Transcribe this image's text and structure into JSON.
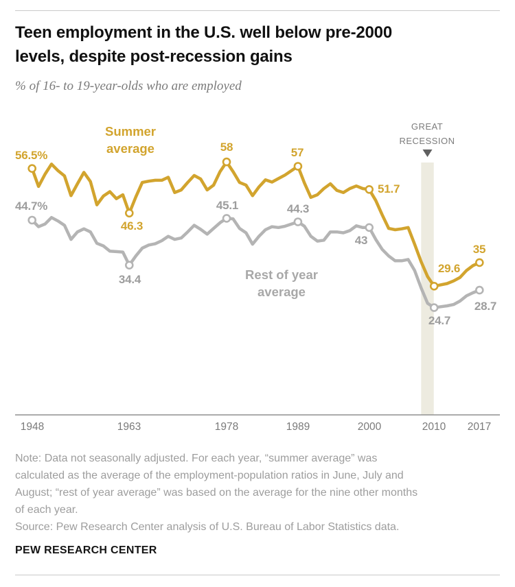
{
  "header": {
    "title": "Teen employment in the U.S. well below pre-2000\nlevels, despite post-recession gains",
    "subtitle": "% of 16- to 19-year-olds who are employed"
  },
  "chart_data": {
    "type": "line",
    "x_start": 1948,
    "x_end": 2017,
    "x_ticks": [
      1948,
      1963,
      1978,
      1989,
      2000,
      2010,
      2017
    ],
    "ylim": [
      0,
      60
    ],
    "grid": false,
    "legend_position": "inline-labels",
    "annotation": {
      "label": "GREAT RECESSION",
      "band_start": 2008,
      "band_end": 2010,
      "band_color": "#edebe0"
    },
    "marked_years": [
      1948,
      1963,
      1978,
      1989,
      2000,
      2010,
      2017
    ],
    "series": [
      {
        "name": "Summer average",
        "color": "#d2a42e",
        "values": [
          56.5,
          52.4,
          55.2,
          57.5,
          56.0,
          54.8,
          50.3,
          53.0,
          55.6,
          53.5,
          48.2,
          50.2,
          51.2,
          49.6,
          50.5,
          46.3,
          50.0,
          53.3,
          53.6,
          53.8,
          53.8,
          54.5,
          51.0,
          51.6,
          53.3,
          54.9,
          54.1,
          51.6,
          52.7,
          55.8,
          58.0,
          55.8,
          53.3,
          52.7,
          50.3,
          52.3,
          53.9,
          53.4,
          54.2,
          55.0,
          56.0,
          57.0,
          53.2,
          49.9,
          50.5,
          51.9,
          53.0,
          51.5,
          51.0,
          51.9,
          52.5,
          51.9,
          51.7,
          49.2,
          45.9,
          42.8,
          42.5,
          42.7,
          43.0,
          39.2,
          35.2,
          31.8,
          29.6,
          29.9,
          30.2,
          30.8,
          31.6,
          33.2,
          34.3,
          35.0
        ]
      },
      {
        "name": "Rest of year average",
        "color": "#b4b4b4",
        "values": [
          44.7,
          43.2,
          43.8,
          45.3,
          44.5,
          43.5,
          40.3,
          42.0,
          42.7,
          42.0,
          39.4,
          38.8,
          37.6,
          37.5,
          37.4,
          34.4,
          36.5,
          38.3,
          39.0,
          39.3,
          40.0,
          41.0,
          40.3,
          40.6,
          42.0,
          43.5,
          42.6,
          41.5,
          42.8,
          44.1,
          45.1,
          45.0,
          42.8,
          41.8,
          39.2,
          41.0,
          42.5,
          43.2,
          43.0,
          43.3,
          43.8,
          44.3,
          43.3,
          41.0,
          39.9,
          40.1,
          42.0,
          42.0,
          41.8,
          42.3,
          43.4,
          43.0,
          43.0,
          40.3,
          38.0,
          36.5,
          35.4,
          35.4,
          35.7,
          33.2,
          29.2,
          25.7,
          24.7,
          24.9,
          25.1,
          25.4,
          26.2,
          27.4,
          28.1,
          28.7
        ]
      }
    ],
    "point_labels": {
      "s1948": "56.5%",
      "r1948": "44.7%",
      "s1963": "46.3",
      "r1963": "34.4",
      "s1978": "58",
      "r1978": "45.1",
      "s1989": "57",
      "r1989": "44.3",
      "s2000": "51.7",
      "r2000": "43",
      "s2010": "29.6",
      "r2010": "24.7",
      "s2017": "35",
      "r2017": "28.7"
    }
  },
  "footer": {
    "note": "Note: Data not seasonally adjusted. For each year, “summer average” was\ncalculated as the average of the employment-population ratios in June, July and\nAugust; “rest of year average” was based on the average for the nine other months\nof each year.",
    "source": "Source: Pew Research Center analysis of U.S. Bureau of Labor Statistics data.",
    "brand": "PEW RESEARCH CENTER"
  }
}
